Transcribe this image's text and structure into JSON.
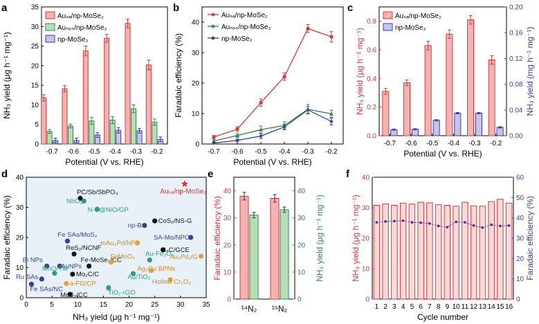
{
  "colors": {
    "au_sa": "#d9383a",
    "au_np": "#2f8a4e",
    "mose2": "#3d3d9e",
    "light_red": "#f4b3b3",
    "light_green": "#b7dfb7",
    "light_blue": "#c4c4ee",
    "star": "#e0302e",
    "panel_d_bg": "#e8f0f8"
  },
  "panels": {
    "a": "a",
    "b": "b",
    "c": "c",
    "d": "d",
    "e": "e",
    "f": "f"
  },
  "chart_data": [
    {
      "id": "a",
      "type": "bar",
      "xlabel": "Potential (V vs. RHE)",
      "ylabel": "NH₃ yield (μg h⁻¹ mg⁻¹)",
      "categories": [
        "-0.7",
        "-0.6",
        "-0.5",
        "-0.4",
        "-0.3",
        "-0.2"
      ],
      "ylim": [
        0,
        35
      ],
      "yticks": [
        "0",
        "5",
        "10",
        "15",
        "20",
        "25",
        "30",
        "35"
      ],
      "legend": [
        "Auₛₐ/np-MoSe₂",
        "Auₙₚₛ/np-MoSe₂",
        "np-MoSe₂"
      ],
      "series": [
        {
          "name": "AuSA/np-MoSe2",
          "values": [
            11.8,
            14.1,
            23.8,
            27.0,
            30.8,
            20.2
          ],
          "errors": [
            0.8,
            0.8,
            1.2,
            1.0,
            1.1,
            1.2
          ]
        },
        {
          "name": "AuNPs/np-MoSe2",
          "values": [
            3.2,
            4.6,
            5.9,
            6.1,
            9.0,
            5.6
          ],
          "errors": [
            0.5,
            0.5,
            0.9,
            0.9,
            1.0,
            0.8
          ]
        },
        {
          "name": "np-MoSe2",
          "values": [
            0.9,
            0.9,
            2.3,
            3.5,
            3.4,
            1.2
          ],
          "errors": [
            0.6,
            0.6,
            0.6,
            0.7,
            0.6,
            0.6
          ]
        }
      ]
    },
    {
      "id": "b",
      "type": "line",
      "xlabel": "Potential (V vs. RHE)",
      "ylabel": "Faradaic efficiency (%)",
      "x": [
        "-0.7",
        "-0.6",
        "-0.5",
        "-0.4",
        "-0.3",
        "-0.2"
      ],
      "ylim": [
        0,
        45
      ],
      "yticks": [
        "0",
        "10",
        "20",
        "30",
        "40"
      ],
      "legend": [
        "Auₛₐ/np-MoSe₂",
        "Auₙₚₛ/np-MoSe₂",
        "np-MoSe₂"
      ],
      "series": [
        {
          "name": "AuSA/np-MoSe2",
          "values": [
            2.3,
            4.9,
            13.6,
            22.1,
            37.9,
            35.2
          ],
          "errors": [
            0.5,
            0.8,
            1.2,
            1.2,
            1.3,
            1.7
          ]
        },
        {
          "name": "AuNPs/np-MoSe2",
          "values": [
            1.0,
            2.8,
            4.7,
            6.1,
            11.4,
            9.9
          ],
          "errors": [
            0.5,
            0.6,
            1.2,
            1.2,
            1.6,
            1.2
          ]
        },
        {
          "name": "np-MoSe2",
          "values": [
            0.3,
            1.2,
            2.6,
            5.6,
            11.2,
            7.4
          ],
          "errors": [
            0.3,
            0.4,
            0.8,
            0.9,
            1.1,
            1.1
          ]
        }
      ]
    },
    {
      "id": "c",
      "type": "bar",
      "xlabel": "Potential (V vs. RHE)",
      "ylabel": "NH₃ yield (μg h⁻¹ mg⁻¹)",
      "ylabel_right": "NH₃ yield (mg h⁻¹ mg⁻¹)",
      "categories": [
        "-0.7",
        "-0.6",
        "-0.5",
        "-0.4",
        "-0.3",
        "-0.2"
      ],
      "ylim": [
        0,
        0.9
      ],
      "yticks": [
        "0.0",
        "0.2",
        "0.4",
        "0.6",
        "0.8"
      ],
      "ylim_right": [
        0,
        0.2
      ],
      "yticks_right": [
        "0.00",
        "0.04",
        "0.08",
        "0.12",
        "0.16",
        "0.20"
      ],
      "legend": [
        "Auₛₐ/np-MoSe₂",
        "np-MoSe₂"
      ],
      "series": [
        {
          "name": "AuSA/np-MoSe2",
          "axis": "left",
          "values": [
            0.31,
            0.37,
            0.63,
            0.71,
            0.81,
            0.53
          ],
          "errors": [
            0.02,
            0.02,
            0.03,
            0.03,
            0.03,
            0.03
          ]
        },
        {
          "name": "np-MoSe2",
          "axis": "right",
          "values": [
            0.0095,
            0.01,
            0.024,
            0.035,
            0.035,
            0.013
          ],
          "errors": [
            0.001,
            0.001,
            0.001,
            0.001,
            0.001,
            0.001
          ]
        }
      ]
    },
    {
      "id": "d",
      "type": "scatter",
      "xlabel": "NH₃ yield (μg h⁻¹ mg⁻¹)",
      "ylabel": "Faradaic efficiency (%)",
      "xlim": [
        0,
        35
      ],
      "xticks": [
        "0",
        "5",
        "10",
        "15",
        "20",
        "25",
        "30",
        "35"
      ],
      "ylim": [
        0,
        40
      ],
      "yticks": [
        "0",
        "10",
        "20",
        "30",
        "40"
      ],
      "points": [
        {
          "label": "Auₛₐ/np-MoSe₂",
          "x": 30.8,
          "y": 37.8,
          "kind": "star"
        },
        {
          "label": "PC/Sb/SbPO₄",
          "x": 10.5,
          "y": 33.0,
          "kind": "black"
        },
        {
          "label": "NbO₂",
          "x": 11.2,
          "y": 32.1,
          "kind": "teal"
        },
        {
          "label": "N-C@NiO/GP",
          "x": 13.8,
          "y": 29.4,
          "kind": "teal"
        },
        {
          "label": "CoS₂/NS-G",
          "x": 25.0,
          "y": 25.5,
          "kind": "black"
        },
        {
          "label": "np-B",
          "x": 23.0,
          "y": 24.0,
          "kind": "blue"
        },
        {
          "label": "Fe SAs/MoS₂",
          "x": 8.0,
          "y": 18.8,
          "kind": "blue"
        },
        {
          "label": "SA-Mo/NPC",
          "x": 32.0,
          "y": 20.0,
          "kind": "blue"
        },
        {
          "label": "mAu₃Pd/NF",
          "x": 21.6,
          "y": 18.2,
          "kind": "orange"
        },
        {
          "label": "ReS₂/NCNF",
          "x": 9.3,
          "y": 14.5,
          "kind": "black"
        },
        {
          "label": "B₄C/GCE",
          "x": 26.6,
          "y": 15.9,
          "kind": "black"
        },
        {
          "label": "Bi NPs",
          "x": 4.0,
          "y": 10.5,
          "kind": "blue"
        },
        {
          "label": "AuNPs",
          "x": 6.5,
          "y": 10.5,
          "kind": "blue"
        },
        {
          "label": "Fe-MoSe₂/CC",
          "x": 12.2,
          "y": 10.5,
          "kind": "black"
        },
        {
          "label": "Au-Fe₃O₄",
          "x": 24.0,
          "y": 12.5,
          "kind": "teal"
        },
        {
          "label": "Au₃Pd₁/G",
          "x": 34.0,
          "y": 13.8,
          "kind": "orange"
        },
        {
          "label": "FeMoO₄",
          "x": 16.5,
          "y": 11.8,
          "kind": "orange"
        },
        {
          "label": "Ag₃Cu BPNs",
          "x": 24.3,
          "y": 9.0,
          "kind": "orange"
        },
        {
          "label": "Mo₂C/C",
          "x": 9.0,
          "y": 7.8,
          "kind": "black"
        },
        {
          "label": "MnO/TM",
          "x": 5.5,
          "y": 8.1,
          "kind": "teal"
        },
        {
          "label": "Au/TiO₂",
          "x": 20.8,
          "y": 8.0,
          "kind": "teal"
        },
        {
          "label": "Ru SAs",
          "x": 3.0,
          "y": 6.2,
          "kind": "blue"
        },
        {
          "label": "Fe SAs/NC",
          "x": 1.0,
          "y": 4.5,
          "kind": "blue"
        },
        {
          "label": "a-FG/CP",
          "x": 7.8,
          "y": 4.7,
          "kind": "orange"
        },
        {
          "label": "Hollow Cr₂O₃",
          "x": 28.0,
          "y": 6.0,
          "kind": "orange"
        },
        {
          "label": "MoS₂/CC",
          "x": 8.5,
          "y": 1.1,
          "kind": "black"
        },
        {
          "label": "TiO₂-rGO",
          "x": 16.0,
          "y": 3.3,
          "kind": "teal"
        }
      ]
    },
    {
      "id": "e",
      "type": "bar",
      "ylabel": "Faradaic efficiency (%)",
      "ylabel_right": "NH₃ yield (μg h⁻¹ mg⁻¹)",
      "categories": [
        "¹⁴N₂",
        "¹⁵N₂"
      ],
      "ylim": [
        0,
        45
      ],
      "yticks": [
        "0",
        "10",
        "20",
        "30",
        "40"
      ],
      "ylim_right": [
        0,
        45
      ],
      "yticks_right": [
        "0",
        "10",
        "20",
        "30",
        "40"
      ],
      "series": [
        {
          "name": "Faradaic efficiency",
          "values": [
            38.0,
            37.2
          ],
          "errors": [
            1.4,
            1.4
          ]
        },
        {
          "name": "NH3 yield",
          "values": [
            31.0,
            33.0
          ],
          "errors": [
            1.0,
            1.0
          ]
        }
      ]
    },
    {
      "id": "f",
      "type": "bar",
      "xlabel": "Cycle number",
      "ylabel": "NH₃ yield (μg h⁻¹ mg⁻¹)",
      "ylabel_right": "Faradaic efficiency (%)",
      "categories": [
        "1",
        "2",
        "3",
        "4",
        "5",
        "6",
        "7",
        "8",
        "9",
        "10",
        "11",
        "12",
        "13",
        "14",
        "15",
        "16"
      ],
      "ylim": [
        0,
        40
      ],
      "yticks": [
        "0",
        "10",
        "20",
        "30",
        "40"
      ],
      "ylim_right": [
        0,
        60
      ],
      "yticks_right": [
        "0",
        "10",
        "20",
        "30",
        "40",
        "50",
        "60"
      ],
      "series": [
        {
          "name": "NH3 yield",
          "values": [
            30.8,
            31.2,
            30.8,
            31.5,
            31.2,
            31.8,
            31.6,
            31.0,
            30.8,
            30.5,
            31.8,
            30.6,
            30.5,
            32.0,
            32.8,
            31.5
          ]
        },
        {
          "name": "Faradaic efficiency",
          "axis": "right",
          "values": [
            37.8,
            38.2,
            38.4,
            38.6,
            37.8,
            37.6,
            37.2,
            36.0,
            35.4,
            38.0,
            37.8,
            36.2,
            35.2,
            36.6,
            36.0,
            36.2
          ]
        }
      ]
    }
  ]
}
